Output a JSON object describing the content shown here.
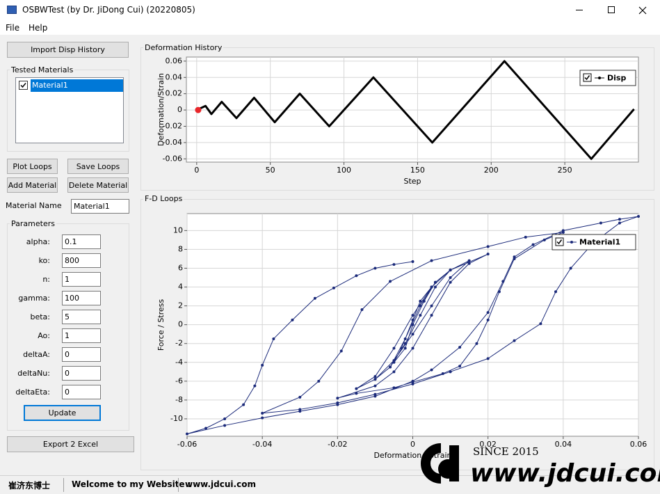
{
  "window": {
    "title": "OSBWTest (by Dr. JiDong Cui) (20220805)"
  },
  "menu": [
    "File",
    "Help"
  ],
  "left_panel": {
    "import_button": "Import Disp History",
    "tested_materials": {
      "title": "Tested Materials",
      "items": [
        "Material1"
      ]
    },
    "buttons": [
      "Plot Loops",
      "Save Loops",
      "Add Material",
      "Delete Material"
    ],
    "material_name": {
      "label": "Material Name",
      "value": "Material1"
    },
    "parameters": {
      "title": "Parameters",
      "fields": [
        {
          "label": "alpha:",
          "value": "0.1"
        },
        {
          "label": "ko:",
          "value": "800"
        },
        {
          "label": "n:",
          "value": "1"
        },
        {
          "label": "gamma:",
          "value": "100"
        },
        {
          "label": "beta:",
          "value": "5"
        },
        {
          "label": "Ao:",
          "value": "1"
        },
        {
          "label": "deltaA:",
          "value": "0"
        },
        {
          "label": "deltaNu:",
          "value": "0"
        },
        {
          "label": "deltaEta:",
          "value": "0"
        }
      ]
    },
    "update_button": "Update",
    "export_button": "Export 2 Excel"
  },
  "chart_data": [
    {
      "type": "line",
      "title": "Deformation History",
      "x_label": "Step",
      "y_label": "Deformation/Strain",
      "x": [
        0,
        6,
        10,
        17,
        27,
        39,
        53,
        70,
        90,
        120,
        160,
        209,
        268,
        297
      ],
      "series": [
        {
          "name": "Disp",
          "color": "#000000",
          "values": [
            0,
            0.005,
            -0.005,
            0.01,
            -0.01,
            0.015,
            -0.015,
            0.02,
            -0.02,
            0.04,
            -0.04,
            0.06,
            -0.06,
            0.001
          ]
        }
      ],
      "highlight": {
        "x": 1,
        "y": 0,
        "color": "#e8262a"
      },
      "xlim": [
        -7,
        300
      ],
      "ylim": [
        -0.064,
        0.065
      ],
      "xticks": [
        0,
        50,
        100,
        150,
        200,
        250
      ],
      "yticks": [
        -0.06,
        -0.04,
        -0.02,
        0,
        0.02,
        0.04,
        0.06
      ],
      "grid": true,
      "markers": false,
      "legend": "upper right"
    },
    {
      "type": "line",
      "title": "F-D Loops",
      "x_label": "Deformation / Strain",
      "y_label": "Force  /  Stress",
      "x": [
        0,
        0.003,
        0.005,
        0.002,
        0,
        -0.003,
        -0.005,
        -0.002,
        0,
        0.003,
        0.006,
        0.01,
        0.006,
        0.002,
        -0.002,
        -0.006,
        -0.01,
        -0.006,
        -0.002,
        0.002,
        0.006,
        0.01,
        0.015,
        0.01,
        0.005,
        0,
        -0.005,
        -0.01,
        -0.015,
        -0.01,
        -0.005,
        0,
        0.005,
        0.01,
        0.02,
        0.015,
        0.01,
        0.005,
        0,
        -0.005,
        -0.01,
        -0.02,
        -0.015,
        -0.005,
        0,
        0.008,
        0.0125,
        0.017,
        0.02,
        0.023,
        0.027,
        0.035,
        0.04,
        0.03,
        0.02,
        0.005,
        -0.006,
        -0.0135,
        -0.019,
        -0.025,
        -0.03,
        -0.04,
        -0.03,
        -0.02,
        -0.01,
        0,
        0.01,
        0.02,
        0.027,
        0.034,
        0.038,
        0.042,
        0.048,
        0.055,
        0.06,
        0.055,
        0.05,
        0.04,
        0.032,
        0.027,
        0.024,
        0.02,
        0.0125,
        0.005,
        0,
        -0.01,
        -0.02,
        -0.03,
        -0.04,
        -0.05,
        -0.06,
        -0.055,
        -0.05,
        -0.045,
        -0.042,
        -0.04,
        -0.037,
        -0.032,
        -0.026,
        -0.021,
        -0.015,
        -0.01,
        -0.005,
        0
      ],
      "series": [
        {
          "name": "Material1",
          "color": "#1b2a7a",
          "values": [
            0,
            2.5,
            4,
            2.5,
            0.5,
            -2.5,
            -4,
            -2.5,
            0,
            2.5,
            4.5,
            5.8,
            4,
            1,
            -2,
            -4.5,
            -5.8,
            -4.5,
            -1.5,
            2,
            4.5,
            5.8,
            6.8,
            5,
            2,
            -1,
            -3.8,
            -5.8,
            -6.8,
            -5.5,
            -2.5,
            1,
            4,
            5.8,
            7.5,
            6.5,
            4.5,
            1,
            -2.5,
            -5,
            -6.5,
            -7.8,
            -7.3,
            -6.7,
            -6.1,
            -5.2,
            -4.4,
            -2,
            0.5,
            3.5,
            7,
            9,
            9.8,
            9.3,
            8.3,
            6.8,
            4.6,
            1.6,
            -2.8,
            -6,
            -7.7,
            -9.4,
            -9,
            -8.3,
            -7.4,
            -6.3,
            -5,
            -3.6,
            -1.7,
            0.1,
            3.5,
            6,
            8.7,
            10.8,
            11.5,
            11.2,
            10.8,
            10,
            8.5,
            7.2,
            4.6,
            1.3,
            -2.4,
            -4.8,
            -6,
            -7.6,
            -8.5,
            -9.2,
            -9.9,
            -10.7,
            -11.6,
            -11,
            -10,
            -8.5,
            -6.5,
            -4.3,
            -1.5,
            0.5,
            2.8,
            3.9,
            5.2,
            6,
            6.4,
            6.7
          ]
        }
      ],
      "xlim": [
        -0.06,
        0.06
      ],
      "ylim": [
        -11.85,
        11.8
      ],
      "xticks": [
        -0.06,
        -0.04,
        -0.02,
        0,
        0.02,
        0.04,
        0.06
      ],
      "yticks": [
        -10,
        -8,
        -6,
        -4,
        -2,
        0,
        2,
        4,
        6,
        8,
        10
      ],
      "grid": true,
      "markers": true,
      "legend": "upper right"
    }
  ],
  "status_bar": [
    "崔济东博士",
    "Welcome to my Website :",
    "www.jdcui.com"
  ],
  "watermark": {
    "since": "SINCE 2015",
    "site": "www.jdcui.com"
  }
}
